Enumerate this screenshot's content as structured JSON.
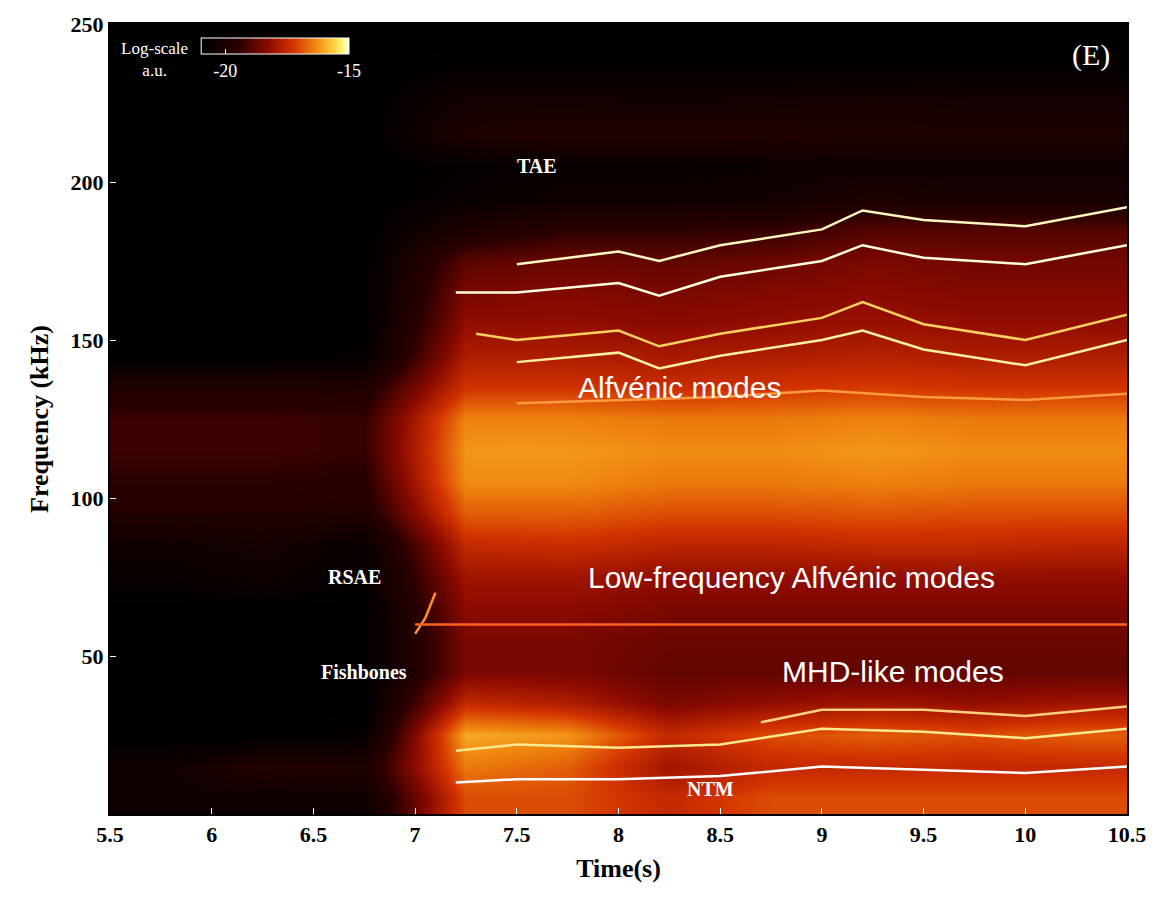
{
  "chart_data": {
    "type": "heatmap",
    "x_label": "Time(s)",
    "y_label": "Frequency (kHz)",
    "panel_label": "(E)",
    "xlim": [
      5.5,
      10.5
    ],
    "ylim": [
      0,
      250
    ],
    "xticks": [
      5.5,
      6,
      6.5,
      7,
      7.5,
      8,
      8.5,
      9,
      9.5,
      10,
      10.5
    ],
    "yticks": [
      50,
      100,
      150,
      200,
      250
    ],
    "grid": false,
    "colorbar": {
      "title": "Log-scale a.u.",
      "range": [
        -21,
        -15
      ],
      "ticks": [
        -20,
        -15
      ]
    },
    "heatmap": {
      "x": [
        5.75,
        6.25,
        6.75,
        7.25,
        7.75,
        8.25,
        8.75,
        9.25,
        9.75,
        10.25
      ],
      "y": [
        5,
        15,
        25,
        35,
        45,
        55,
        65,
        75,
        85,
        95,
        105,
        115,
        125,
        135,
        145,
        155,
        165,
        175,
        185,
        195,
        205,
        215,
        225,
        235,
        245
      ],
      "z": [
        [
          -20.5,
          -20.5,
          -20.5,
          -17,
          -17,
          -17.5,
          -17,
          -17,
          -17,
          -17
        ],
        [
          -20.5,
          -19.8,
          -20,
          -16.5,
          -16.8,
          -18,
          -17.5,
          -17.5,
          -17.5,
          -17.5
        ],
        [
          -21,
          -21,
          -20.8,
          -16,
          -16.2,
          -17.5,
          -17,
          -16.8,
          -17,
          -16.8
        ],
        [
          -21,
          -21,
          -21,
          -17.5,
          -17.8,
          -18.5,
          -18.2,
          -18,
          -18.2,
          -18
        ],
        [
          -21,
          -21,
          -21,
          -18.5,
          -18.5,
          -18.8,
          -18.8,
          -18.8,
          -18.8,
          -18.8
        ],
        [
          -21,
          -21,
          -21,
          -18.5,
          -18.5,
          -18.7,
          -18.7,
          -18.7,
          -18.7,
          -18.7
        ],
        [
          -21,
          -21,
          -21,
          -18.3,
          -18.3,
          -18.5,
          -18.5,
          -18.5,
          -18.5,
          -18.5
        ],
        [
          -20.7,
          -20.5,
          -20.8,
          -18,
          -18,
          -18.2,
          -18.2,
          -18.2,
          -18.2,
          -18.2
        ],
        [
          -20.5,
          -20.3,
          -20.7,
          -17.5,
          -17.4,
          -17.6,
          -17.6,
          -17.5,
          -17.5,
          -17.6
        ],
        [
          -19.8,
          -19.8,
          -19.9,
          -16.8,
          -16.8,
          -17,
          -17,
          -16.9,
          -17,
          -17
        ],
        [
          -19.5,
          -19.5,
          -19.6,
          -16.3,
          -16.3,
          -16.5,
          -16.5,
          -16.4,
          -16.5,
          -16.5
        ],
        [
          -19.3,
          -19.3,
          -19.4,
          -16.2,
          -16.2,
          -16.3,
          -16.3,
          -16.2,
          -16.3,
          -16.3
        ],
        [
          -19.3,
          -19.3,
          -19.4,
          -16.4,
          -16.4,
          -16.5,
          -16.5,
          -16.4,
          -16.5,
          -16.5
        ],
        [
          -19.8,
          -19.8,
          -19.9,
          -17.3,
          -17.3,
          -17.4,
          -17.3,
          -17.2,
          -17.3,
          -17.3
        ],
        [
          -21,
          -21,
          -20.8,
          -17.8,
          -17.8,
          -17.9,
          -17.8,
          -17.7,
          -17.8,
          -17.8
        ],
        [
          -21,
          -21,
          -21,
          -18.2,
          -18.2,
          -18.3,
          -18.2,
          -18.1,
          -18.2,
          -18.2
        ],
        [
          -21,
          -21,
          -21,
          -18.5,
          -18.4,
          -18.5,
          -18.4,
          -18.3,
          -18.4,
          -18.4
        ],
        [
          -21,
          -21,
          -21,
          -18.9,
          -18.7,
          -18.8,
          -18.7,
          -18.5,
          -18.6,
          -18.6
        ],
        [
          -21,
          -21,
          -21,
          -20,
          -19.5,
          -19.5,
          -19.4,
          -19,
          -19,
          -19
        ],
        [
          -21,
          -21,
          -21,
          -20.7,
          -20.5,
          -20.5,
          -20.4,
          -20,
          -20.2,
          -20.2
        ],
        [
          -21,
          -21,
          -21,
          -20.8,
          -20.7,
          -20.7,
          -20.6,
          -20.5,
          -20.5,
          -20.5
        ],
        [
          -21,
          -21,
          -21,
          -20,
          -19.8,
          -19.8,
          -19.9,
          -20,
          -20,
          -20
        ],
        [
          -21,
          -21,
          -21,
          -20.3,
          -20.3,
          -20.4,
          -20.3,
          -20.2,
          -20.3,
          -20.3
        ],
        [
          -21,
          -21,
          -21,
          -20.8,
          -20.8,
          -20.8,
          -20.8,
          -20.8,
          -20.8,
          -20.8
        ],
        [
          -21,
          -21,
          -21,
          -21,
          -21,
          -21,
          -21,
          -21,
          -21,
          -21
        ]
      ]
    },
    "series": [
      {
        "type": "line",
        "color": "#fff7c0",
        "x": [
          7.5,
          8,
          8.2,
          8.5,
          9,
          9.2,
          9.5,
          10,
          10.5
        ],
        "values": [
          174,
          178,
          175,
          180,
          185,
          191,
          188,
          186,
          192
        ]
      },
      {
        "type": "line",
        "color": "#ffffe0",
        "x": [
          7.2,
          7.5,
          8,
          8.2,
          8.5,
          9,
          9.2,
          9.5,
          10,
          10.5
        ],
        "values": [
          165,
          165,
          168,
          164,
          170,
          175,
          180,
          176,
          174,
          180
        ]
      },
      {
        "type": "line",
        "color": "#ffd060",
        "x": [
          7.3,
          7.5,
          8,
          8.2,
          8.5,
          9,
          9.2,
          9.5,
          10,
          10.5
        ],
        "values": [
          152,
          150,
          153,
          148,
          152,
          157,
          162,
          155,
          150,
          158
        ]
      },
      {
        "type": "line",
        "color": "#fff0a0",
        "x": [
          7.5,
          8,
          8.2,
          8.5,
          9,
          9.2,
          9.5,
          10,
          10.5
        ],
        "values": [
          143,
          146,
          141,
          145,
          150,
          153,
          147,
          142,
          150
        ]
      },
      {
        "type": "line",
        "color": "#ff9a40",
        "x": [
          7.5,
          8,
          8.5,
          9,
          9.5,
          10,
          10.5
        ],
        "values": [
          130,
          131,
          132,
          134,
          132,
          131,
          133
        ]
      },
      {
        "type": "line",
        "color": "#ff8a30",
        "x": [
          7,
          7.05,
          7.1
        ],
        "values": [
          57,
          62,
          70
        ]
      },
      {
        "type": "line",
        "color": "#ff6020",
        "x": [
          7,
          8,
          9,
          10,
          10.5
        ],
        "values": [
          60,
          60,
          60,
          60,
          60
        ]
      },
      {
        "type": "line",
        "color": "#ffffff",
        "x": [
          7.2,
          7.5,
          8,
          8.5,
          9,
          9.5,
          10,
          10.5
        ],
        "values": [
          10,
          11,
          11,
          12,
          15,
          14,
          13,
          15
        ]
      },
      {
        "type": "line",
        "color": "#ffe890",
        "x": [
          7.2,
          7.5,
          8,
          8.5,
          9,
          9.5,
          10,
          10.5
        ],
        "values": [
          20,
          22,
          21,
          22,
          27,
          26,
          24,
          27
        ]
      },
      {
        "type": "line",
        "color": "#ffd080",
        "x": [
          8.7,
          9,
          9.5,
          10,
          10.5
        ],
        "values": [
          29,
          33,
          33,
          31,
          34
        ]
      }
    ],
    "annotations": [
      {
        "text": "TAE",
        "x": 7.6,
        "y": 205,
        "color": "#ffffff"
      },
      {
        "text": "RSAE",
        "x": 6.7,
        "y": 75,
        "color": "#ffffff"
      },
      {
        "text": "Fishbones",
        "x": 6.75,
        "y": 45,
        "color": "#ffffff"
      },
      {
        "text": "NTM",
        "x": 8.45,
        "y": 8,
        "color": "#ffffff"
      }
    ],
    "overlay_labels": [
      {
        "text": "Alfvénic modes",
        "x": 8.3,
        "y": 135,
        "color": "#ffffff"
      },
      {
        "text": "Low-frequency Alfvénic modes",
        "x": 8.85,
        "y": 75,
        "color": "#ffffff"
      },
      {
        "text": "MHD-like modes",
        "x": 9.35,
        "y": 45,
        "color": "#ffffff"
      }
    ]
  }
}
